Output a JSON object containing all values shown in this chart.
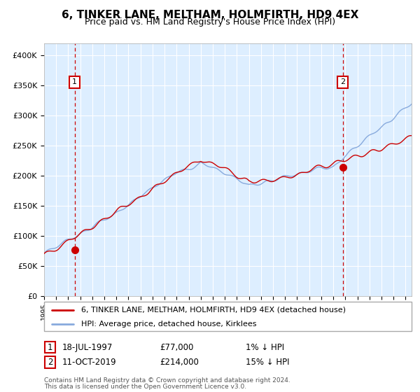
{
  "title": "6, TINKER LANE, MELTHAM, HOLMFIRTH, HD9 4EX",
  "subtitle": "Price paid vs. HM Land Registry's House Price Index (HPI)",
  "ylabel_ticks": [
    "£0",
    "£50K",
    "£100K",
    "£150K",
    "£200K",
    "£250K",
    "£300K",
    "£350K",
    "£400K"
  ],
  "ytick_values": [
    0,
    50000,
    100000,
    150000,
    200000,
    250000,
    300000,
    350000,
    400000
  ],
  "ylim": [
    0,
    420000
  ],
  "xlim_start": 1995.0,
  "xlim_end": 2025.5,
  "sale1_year": 1997.54,
  "sale1_price": 77000,
  "sale1_label": "1",
  "sale1_date": "18-JUL-1997",
  "sale1_price_str": "£77,000",
  "sale1_hpi": "1% ↓ HPI",
  "sale2_year": 2019.78,
  "sale2_price": 214000,
  "sale2_label": "2",
  "sale2_date": "11-OCT-2019",
  "sale2_price_str": "£214,000",
  "sale2_hpi": "15% ↓ HPI",
  "legend_line1": "6, TINKER LANE, MELTHAM, HOLMFIRTH, HD9 4EX (detached house)",
  "legend_line2": "HPI: Average price, detached house, Kirklees",
  "footnote1": "Contains HM Land Registry data © Crown copyright and database right 2024.",
  "footnote2": "This data is licensed under the Open Government Licence v3.0.",
  "line_color_red": "#cc0000",
  "line_color_blue": "#88aadd",
  "bg_color": "#ddeeff",
  "grid_color": "#ffffff",
  "marker_box_color": "#cc0000",
  "title_fontsize": 11,
  "subtitle_fontsize": 9
}
